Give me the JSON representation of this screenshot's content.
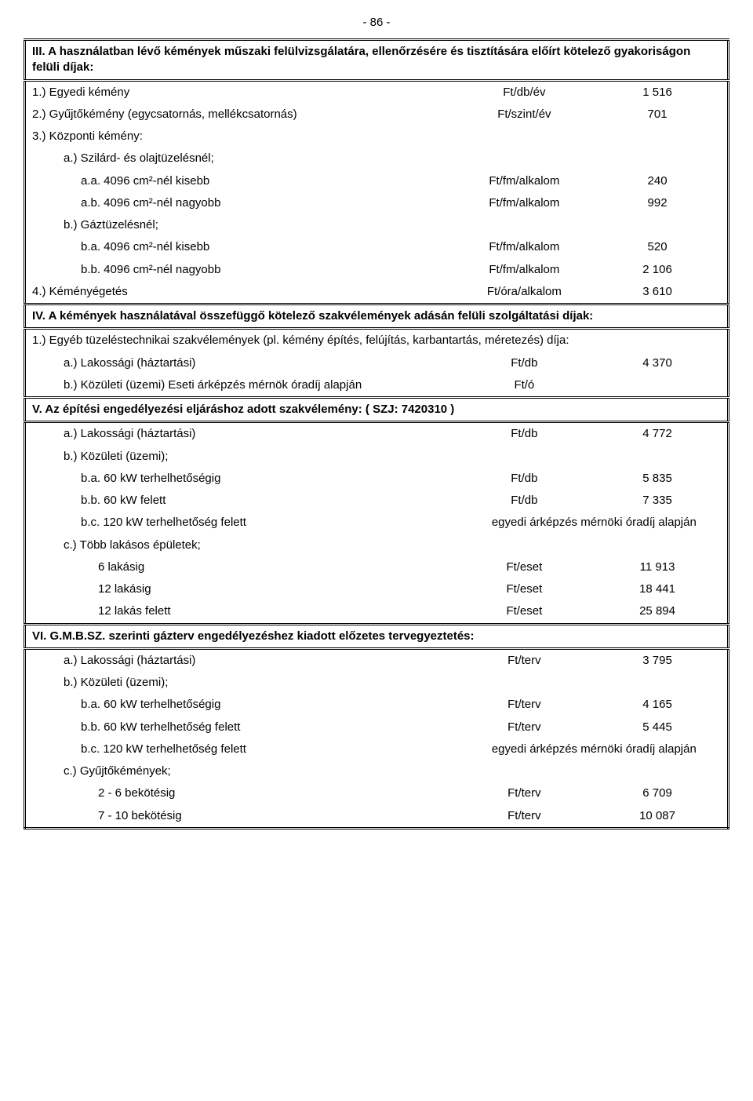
{
  "page_number": "- 86 -",
  "s3": {
    "title": "III.  A használatban lévő kémények műszaki felülvizsgálatára, ellenőrzésére és tisztítására előírt kötelező gyakoriságon felüli díjak:",
    "r1": {
      "label": "1.)  Egyedi kémény",
      "unit": "Ft/db/év",
      "val": "1 516"
    },
    "r2": {
      "label": "2.)  Gyűjtőkémény (egycsatornás, mellékcsatornás)",
      "unit": "Ft/szint/év",
      "val": "701"
    },
    "r3": {
      "label": "3.)  Központi kémény:"
    },
    "r3a": {
      "label": "a.)  Szilárd- és olajtüzelésnél;"
    },
    "r3aa": {
      "label": "a.a.  4096 cm²-nél kisebb",
      "unit": "Ft/fm/alkalom",
      "val": "240"
    },
    "r3ab": {
      "label": "a.b.  4096 cm²-nél nagyobb",
      "unit": "Ft/fm/alkalom",
      "val": "992"
    },
    "r3b": {
      "label": "b.)  Gáztüzelésnél;"
    },
    "r3ba": {
      "label": "b.a.  4096 cm²-nél kisebb",
      "unit": "Ft/fm/alkalom",
      "val": "520"
    },
    "r3bb": {
      "label": "b.b.  4096 cm²-nél nagyobb",
      "unit": "Ft/fm/alkalom",
      "val": "2 106"
    },
    "r4": {
      "label": "4.)  Kéményégetés",
      "unit": "Ft/óra/alkalom",
      "val": "3 610"
    }
  },
  "s4": {
    "title": "IV.  A kémények használatával összefüggő kötelező szakvélemények adásán felüli szolgáltatási díjak:",
    "intro": "1.)  Egyéb tüzeléstechnikai szakvélemények (pl. kémény építés, felújítás, karbantartás, méretezés) díja:",
    "ra": {
      "label": "a.) Lakossági (háztartási)",
      "unit": "Ft/db",
      "val": "4 370"
    },
    "rb": {
      "label": "b.) Közületi (üzemi) Eseti árképzés mérnök óradíj alapján",
      "unit": "Ft/ó"
    }
  },
  "s5": {
    "title": "V.   Az építési engedélyezési eljáráshoz adott szakvélemény: ( SZJ:  7420310  )",
    "ra": {
      "label": "a.)  Lakossági (háztartási)",
      "unit": "Ft/db",
      "val": "4 772"
    },
    "rb": {
      "label": "b.)  Közületi (üzemi);"
    },
    "rba": {
      "label": "b.a.  60 kW terhelhetőségig",
      "unit": "Ft/db",
      "val": "5 835"
    },
    "rbb": {
      "label": "b.b.  60 kW felett",
      "unit": "Ft/db",
      "val": "7 335"
    },
    "rbc": {
      "label": "b.c.  120 kW terhelhetőség felett",
      "note": "egyedi árképzés mérnöki óradíj alapján"
    },
    "rc": {
      "label": "c.)  Több lakásos épületek;"
    },
    "rc6": {
      "label": "6 lakásig",
      "unit": "Ft/eset",
      "val": "11 913"
    },
    "rc12": {
      "label": "12 lakásig",
      "unit": "Ft/eset",
      "val": "18 441"
    },
    "rc12f": {
      "label": "12 lakás felett",
      "unit": "Ft/eset",
      "val": "25 894"
    }
  },
  "s6": {
    "title": "VI.  G.M.B.SZ.  szerinti gázterv engedélyezéshez kiadott előzetes tervegyeztetés:",
    "ra": {
      "label": "a.)  Lakossági (háztartási)",
      "unit": "Ft/terv",
      "val": "3 795"
    },
    "rb": {
      "label": "b.)  Közületi (üzemi);"
    },
    "rba": {
      "label": "b.a.  60 kW terhelhetőségig",
      "unit": "Ft/terv",
      "val": "4 165"
    },
    "rbb": {
      "label": "b.b.  60 kW terhelhetőség felett",
      "unit": "Ft/terv",
      "val": "5 445"
    },
    "rbc": {
      "label": "b.c.  120 kW terhelhetőség felett",
      "note": "egyedi árképzés mérnöki óradíj alapján"
    },
    "rc": {
      "label": "c.)  Gyűjtőkémények;"
    },
    "rc26": {
      "label": "2 -  6  bekötésig",
      "unit": "Ft/terv",
      "val": "6 709"
    },
    "rc710": {
      "label": "7 - 10  bekötésig",
      "unit": "Ft/terv",
      "val": "10 087"
    }
  }
}
